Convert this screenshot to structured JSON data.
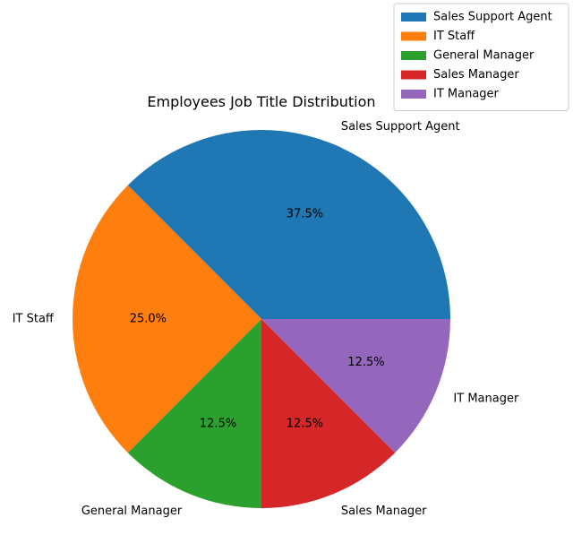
{
  "chart_data": {
    "type": "pie",
    "title": "Employees Job Title Distribution",
    "labels": [
      "Sales Support Agent",
      "IT Staff",
      "General Manager",
      "Sales Manager",
      "IT Manager"
    ],
    "values": [
      37.5,
      25.0,
      12.5,
      12.5,
      12.5
    ],
    "percent_labels": [
      "37.5%",
      "25.0%",
      "12.5%",
      "12.5%",
      "12.5%"
    ],
    "colors": [
      "#1f77b4",
      "#ff7f0e",
      "#2ca02c",
      "#d62728",
      "#9467bd"
    ],
    "start_angle": 0,
    "direction": "counterclockwise",
    "legend": {
      "placement": "top-right",
      "entries": [
        "Sales Support Agent",
        "IT Staff",
        "General Manager",
        "Sales Manager",
        "IT Manager"
      ]
    }
  }
}
